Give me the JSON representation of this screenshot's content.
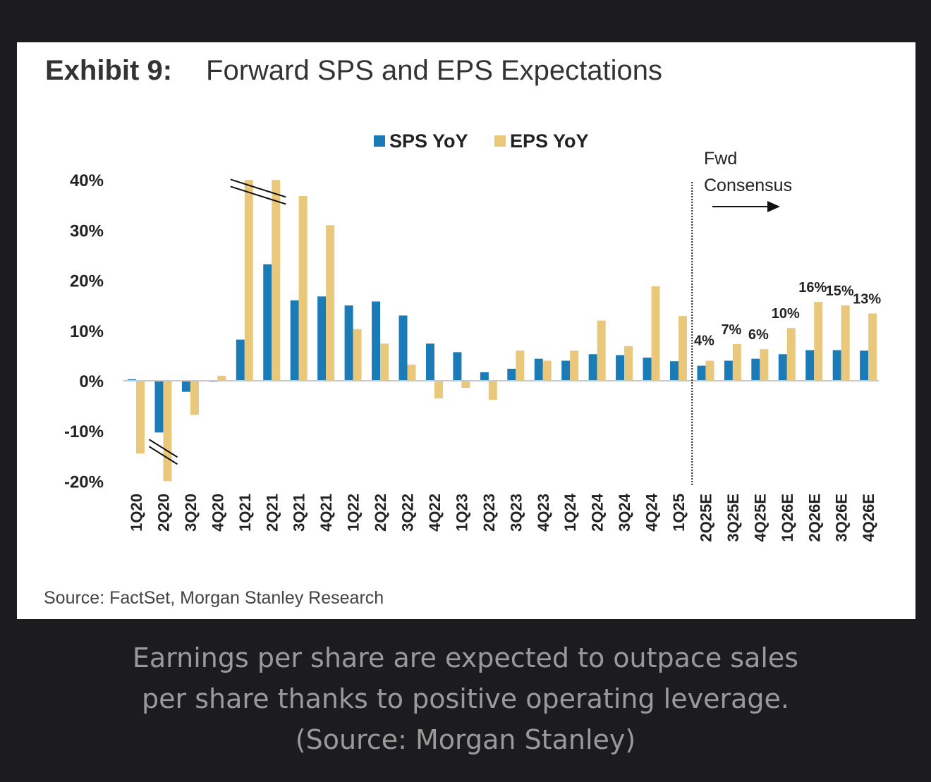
{
  "title": {
    "exhibit": "Exhibit 9:",
    "text": "Forward SPS and EPS Expectations"
  },
  "source": "Source: FactSet, Morgan Stanley Research",
  "caption": "Earnings per share are expected to outpace sales per share thanks to positive operating leverage. (Source: Morgan Stanley)",
  "chart_data": {
    "type": "bar",
    "ylim": [
      -20,
      40
    ],
    "yticks": [
      "-20%",
      "-10%",
      "0%",
      "10%",
      "20%",
      "30%",
      "40%"
    ],
    "ytick_values": [
      -20,
      -10,
      0,
      10,
      20,
      30,
      40
    ],
    "legend_placement": "top-center",
    "grid": false,
    "colors": {
      "SPS YoY": "#1b7bb6",
      "EPS YoY": "#e9c87c"
    },
    "categories": [
      "1Q20",
      "2Q20",
      "3Q20",
      "4Q20",
      "1Q21",
      "2Q21",
      "3Q21",
      "4Q21",
      "1Q22",
      "2Q22",
      "3Q22",
      "4Q22",
      "1Q23",
      "2Q23",
      "3Q23",
      "4Q23",
      "1Q24",
      "2Q24",
      "3Q24",
      "4Q24",
      "1Q25",
      "2Q25E",
      "3Q25E",
      "4Q25E",
      "1Q26E",
      "2Q26E",
      "3Q26E",
      "4Q26E"
    ],
    "series": [
      {
        "name": "SPS YoY",
        "values": [
          0.3,
          -10.3,
          -2.2,
          -0.2,
          8.2,
          23.2,
          16,
          16.8,
          15,
          15.8,
          13,
          7.4,
          5.7,
          1.7,
          2.4,
          4.4,
          4,
          5.3,
          5.1,
          4.6,
          3.9,
          3,
          4,
          4.4,
          5.3,
          6.1,
          6.1,
          6
        ]
      },
      {
        "name": "EPS YoY",
        "values": [
          -14.5,
          -20.5,
          -6.8,
          1,
          40,
          40,
          36.8,
          31,
          10.3,
          7.4,
          3.2,
          -3.5,
          -1.4,
          -3.8,
          6,
          4,
          6,
          12,
          6.9,
          18.8,
          12.9,
          4,
          7.3,
          6.3,
          10.5,
          15.7,
          15,
          13.4
        ]
      }
    ],
    "axis_breaks": [
      {
        "series": "EPS YoY",
        "categories": [
          "1Q21",
          "2Q21"
        ]
      },
      {
        "series": "EPS YoY",
        "categories": [
          "2Q20"
        ]
      }
    ],
    "data_labels": {
      "series": "EPS YoY",
      "categories": [
        "2Q25E",
        "3Q25E",
        "4Q25E",
        "1Q26E",
        "2Q26E",
        "3Q26E",
        "4Q26E"
      ],
      "labels": [
        "4%",
        "7%",
        "6%",
        "10%",
        "16%",
        "15%",
        "13%"
      ]
    },
    "annotation": {
      "lines": [
        "Fwd",
        "Consensus"
      ],
      "divider_after": "1Q25"
    }
  }
}
